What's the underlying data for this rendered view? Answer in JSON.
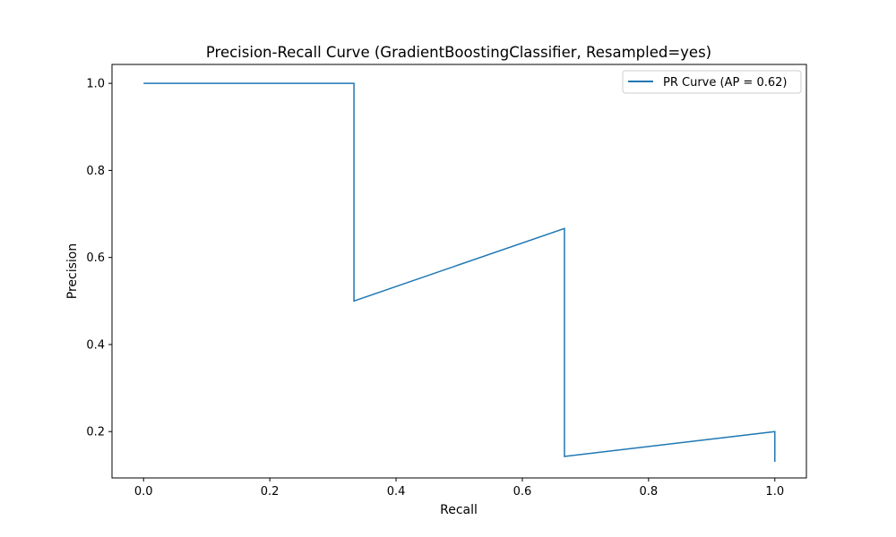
{
  "chart_data": {
    "type": "line",
    "title": "Precision-Recall Curve (GradientBoostingClassifier, Resampled=yes)",
    "xlabel": "Recall",
    "ylabel": "Precision",
    "xlim": [
      -0.05,
      1.05
    ],
    "ylim": [
      0.0935,
      1.0435
    ],
    "xticks": [
      0.0,
      0.2,
      0.4,
      0.6,
      0.8,
      1.0
    ],
    "yticks": [
      0.2,
      0.4,
      0.6,
      0.8,
      1.0
    ],
    "xtick_labels": [
      "0.0",
      "0.2",
      "0.4",
      "0.6",
      "0.8",
      "1.0"
    ],
    "ytick_labels": [
      "0.2",
      "0.4",
      "0.6",
      "0.8",
      "1.0"
    ],
    "grid": false,
    "legend_position": "top-right",
    "series": [
      {
        "name": "PR Curve (AP = 0.62)",
        "color": "#1f77b4",
        "x": [
          0.0,
          0.3333,
          0.3333,
          0.6667,
          0.6667,
          1.0,
          1.0
        ],
        "y": [
          1.0,
          1.0,
          0.5,
          0.6667,
          0.1429,
          0.2,
          0.1304
        ]
      }
    ]
  }
}
